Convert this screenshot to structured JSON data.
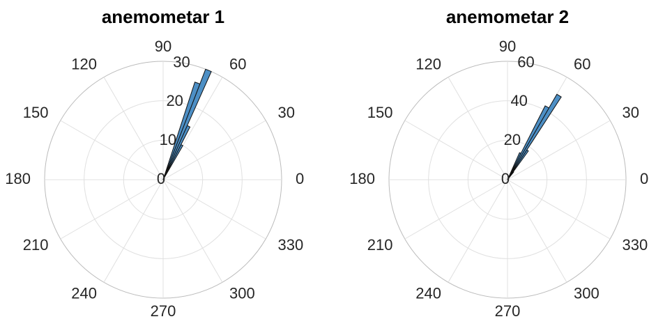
{
  "chart_data": [
    {
      "type": "polar_histogram",
      "title": "anemometar 1",
      "bins": [
        60,
        63,
        66,
        69,
        72
      ],
      "values": [
        10,
        15,
        30,
        26
      ],
      "color": "#4d8fc5",
      "edgecolor": "#111111",
      "rlim": [
        0,
        30
      ],
      "rticks": [
        0,
        10,
        20,
        30
      ],
      "thetaticks": [
        0,
        30,
        60,
        90,
        120,
        150,
        180,
        210,
        240,
        270,
        300,
        330
      ],
      "grid": true
    },
    {
      "type": "polar_histogram",
      "title": "anemometar 2",
      "bins": [
        51,
        54,
        57,
        60,
        63,
        66
      ],
      "values": [
        5,
        18,
        50,
        42,
        15
      ],
      "color": "#4d8fc5",
      "edgecolor": "#111111",
      "rlim": [
        0,
        60
      ],
      "rticks": [
        0,
        20,
        40,
        60
      ],
      "thetaticks": [
        0,
        30,
        60,
        90,
        120,
        150,
        180,
        210,
        240,
        270,
        300,
        330
      ],
      "grid": true
    }
  ]
}
